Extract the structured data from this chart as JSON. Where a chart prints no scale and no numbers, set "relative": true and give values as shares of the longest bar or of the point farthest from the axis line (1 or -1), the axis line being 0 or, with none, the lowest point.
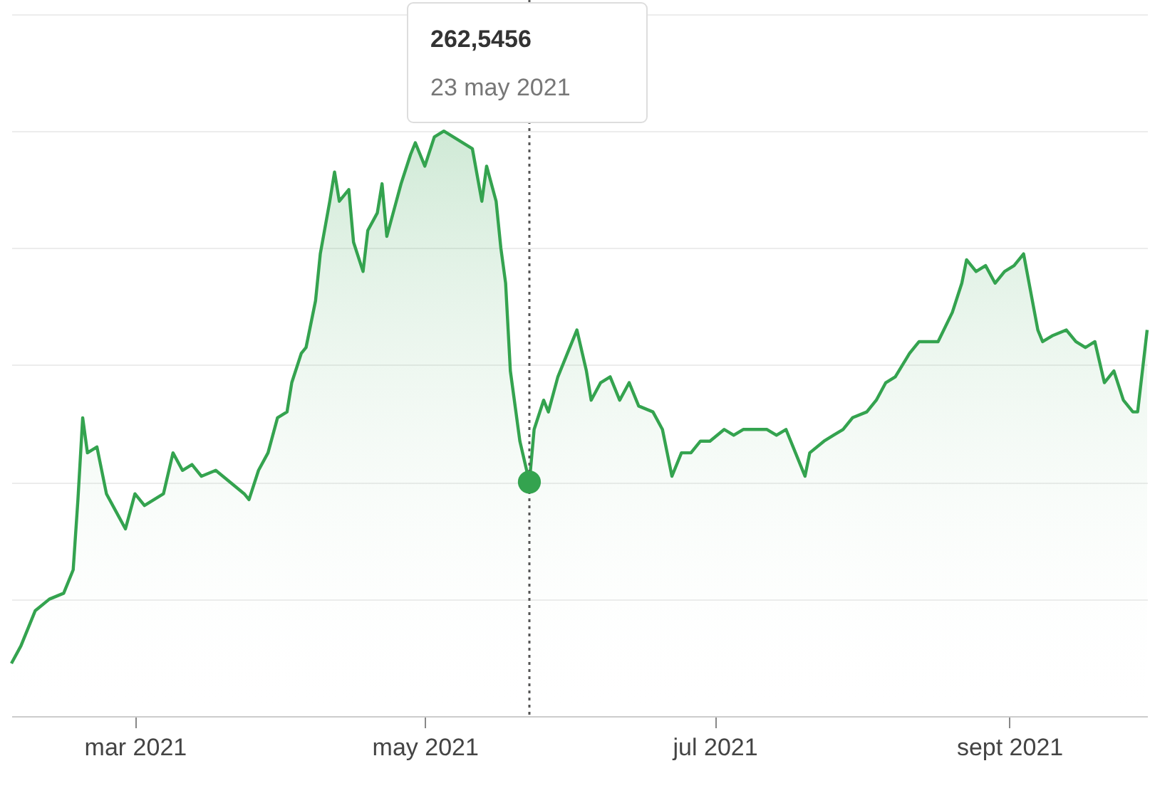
{
  "chart_data": {
    "type": "area",
    "relative": true,
    "x": [
      "2021-02-03",
      "2021-02-05",
      "2021-02-08",
      "2021-02-11",
      "2021-02-14",
      "2021-02-16",
      "2021-02-17",
      "2021-02-18",
      "2021-02-19",
      "2021-02-21",
      "2021-02-23",
      "2021-02-25",
      "2021-02-27",
      "2021-03-01",
      "2021-03-03",
      "2021-03-05",
      "2021-03-07",
      "2021-03-09",
      "2021-03-11",
      "2021-03-13",
      "2021-03-15",
      "2021-03-18",
      "2021-03-21",
      "2021-03-24",
      "2021-03-25",
      "2021-03-27",
      "2021-03-29",
      "2021-03-31",
      "2021-04-02",
      "2021-04-03",
      "2021-04-05",
      "2021-04-06",
      "2021-04-08",
      "2021-04-09",
      "2021-04-11",
      "2021-04-12",
      "2021-04-13",
      "2021-04-15",
      "2021-04-16",
      "2021-04-18",
      "2021-04-19",
      "2021-04-21",
      "2021-04-22",
      "2021-04-23",
      "2021-04-25",
      "2021-04-26",
      "2021-04-28",
      "2021-04-29",
      "2021-05-01",
      "2021-05-03",
      "2021-05-05",
      "2021-05-07",
      "2021-05-09",
      "2021-05-11",
      "2021-05-13",
      "2021-05-14",
      "2021-05-16",
      "2021-05-17",
      "2021-05-18",
      "2021-05-19",
      "2021-05-20",
      "2021-05-21",
      "2021-05-23",
      "2021-05-24",
      "2021-05-26",
      "2021-05-27",
      "2021-05-29",
      "2021-05-31",
      "2021-06-02",
      "2021-06-04",
      "2021-06-05",
      "2021-06-07",
      "2021-06-09",
      "2021-06-11",
      "2021-06-13",
      "2021-06-15",
      "2021-06-18",
      "2021-06-20",
      "2021-06-21",
      "2021-06-22",
      "2021-06-24",
      "2021-06-26",
      "2021-06-28",
      "2021-06-30",
      "2021-07-03",
      "2021-07-05",
      "2021-07-07",
      "2021-07-09",
      "2021-07-12",
      "2021-07-14",
      "2021-07-16",
      "2021-07-18",
      "2021-07-20",
      "2021-07-21",
      "2021-07-24",
      "2021-07-26",
      "2021-07-28",
      "2021-07-30",
      "2021-08-02",
      "2021-08-04",
      "2021-08-06",
      "2021-08-08",
      "2021-08-11",
      "2021-08-13",
      "2021-08-15",
      "2021-08-17",
      "2021-08-20",
      "2021-08-22",
      "2021-08-23",
      "2021-08-25",
      "2021-08-27",
      "2021-08-29",
      "2021-08-31",
      "2021-09-02",
      "2021-09-04",
      "2021-09-07",
      "2021-09-08",
      "2021-09-10",
      "2021-09-13",
      "2021-09-15",
      "2021-09-17",
      "2021-09-19",
      "2021-09-21",
      "2021-09-23",
      "2021-09-25",
      "2021-09-27",
      "2021-09-28",
      "2021-09-30"
    ],
    "series": [
      {
        "type": "scatter",
        "x": [
          "2021-05-23"
        ],
        "color": "#34a34f",
        "marker": "circle",
        "values": [
          0.4
        ]
      },
      {
        "color": "#34a34f",
        "values": [
          0.09,
          0.12,
          0.18,
          0.2,
          0.21,
          0.25,
          0.37,
          0.51,
          0.45,
          0.46,
          0.38,
          0.35,
          0.32,
          0.38,
          0.36,
          0.37,
          0.38,
          0.45,
          0.42,
          0.43,
          0.41,
          0.42,
          0.4,
          0.38,
          0.37,
          0.42,
          0.45,
          0.51,
          0.52,
          0.57,
          0.62,
          0.63,
          0.71,
          0.79,
          0.88,
          0.93,
          0.88,
          0.9,
          0.81,
          0.76,
          0.83,
          0.86,
          0.91,
          0.82,
          0.88,
          0.91,
          0.96,
          0.98,
          0.94,
          0.99,
          1,
          0.99,
          0.98,
          0.97,
          0.88,
          0.94,
          0.88,
          0.8,
          0.74,
          0.59,
          0.53,
          0.47,
          0.4,
          0.49,
          0.54,
          0.52,
          0.58,
          0.62,
          0.66,
          0.59,
          0.54,
          0.57,
          0.58,
          0.54,
          0.57,
          0.53,
          0.52,
          0.49,
          0.45,
          0.41,
          0.45,
          0.45,
          0.47,
          0.47,
          0.49,
          0.48,
          0.49,
          0.49,
          0.49,
          0.48,
          0.49,
          0.45,
          0.41,
          0.45,
          0.47,
          0.48,
          0.49,
          0.51,
          0.52,
          0.54,
          0.57,
          0.58,
          0.62,
          0.64,
          0.64,
          0.64,
          0.69,
          0.74,
          0.78,
          0.76,
          0.77,
          0.74,
          0.76,
          0.77,
          0.79,
          0.66,
          0.64,
          0.65,
          0.66,
          0.64,
          0.63,
          0.64,
          0.57,
          0.59,
          0.54,
          0.52,
          0.52,
          0.66
        ]
      }
    ],
    "xlim": [
      "2021-02-03",
      "2021-09-30"
    ],
    "xticks": [
      {
        "value": "2021-03-01",
        "label": "mar 2021"
      },
      {
        "value": "2021-05-01",
        "label": "may 2021"
      },
      {
        "value": "2021-07-01",
        "label": "jul 2021"
      },
      {
        "value": "2021-09-01",
        "label": "sept 2021"
      }
    ],
    "grid": "y",
    "ref_lines": [
      {
        "axis": "x",
        "value": "2021-05-23",
        "line_style": "dotted",
        "color": "#555555"
      }
    ],
    "annotations": [
      "262,5456\n23 may 2021"
    ]
  }
}
